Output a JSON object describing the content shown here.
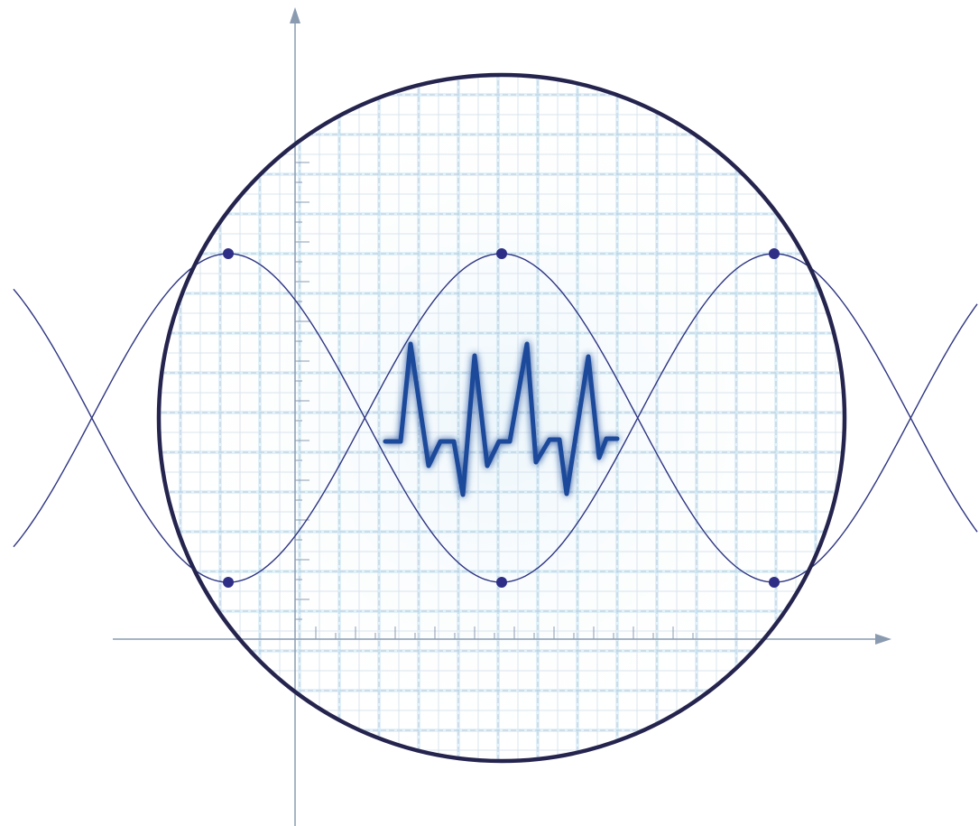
{
  "diagram": {
    "colors": {
      "background": "#ffffff",
      "axis": "#8a9bb0",
      "circle_stroke": "#24244e",
      "grid_major": "#b8c8d8",
      "grid_minor": "#d9e4ee",
      "grid_glow": "#c8e6f5",
      "wave_stroke": "#2e3582",
      "marker_fill": "#2e2e86",
      "pulse_stroke": "#1c4a9a",
      "pulse_glow": "#9fd3e3"
    },
    "icons": {
      "x_axis_arrow": "arrow-right-icon",
      "y_axis_arrow": "arrow-up-icon",
      "pulse": "heartbeat-waveform-icon"
    },
    "waves": [
      {
        "name": "",
        "shape": "cosine",
        "phase": "peak-at-markers"
      },
      {
        "name": "",
        "shape": "cosine",
        "phase": "trough-at-markers"
      }
    ],
    "marker_count": 6,
    "has_grid": true,
    "has_axes": true
  }
}
